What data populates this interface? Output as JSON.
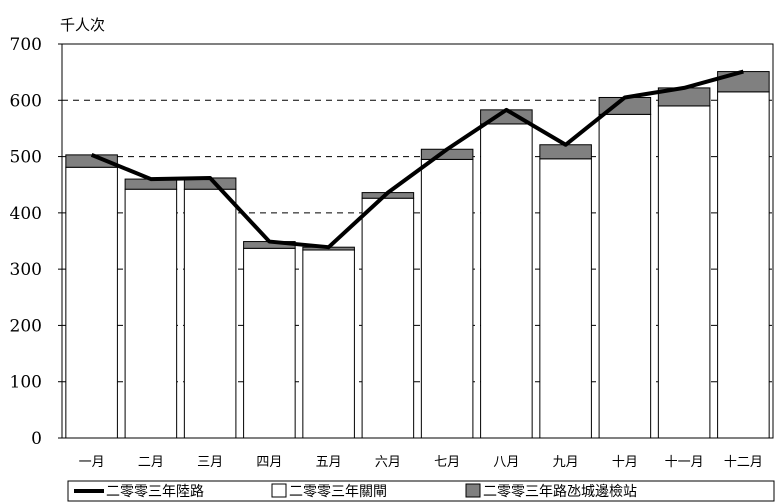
{
  "chart_data": {
    "type": "bar",
    "stacked": true,
    "y_unit": "千人次",
    "categories": [
      "一月",
      "二月",
      "三月",
      "四月",
      "五月",
      "六月",
      "七月",
      "八月",
      "九月",
      "十月",
      "十一月",
      "十二月"
    ],
    "series": [
      {
        "name": "二零零三年關閘",
        "kind": "bar",
        "color": "#ffffff",
        "values": [
          481,
          442,
          442,
          337,
          334,
          426,
          495,
          558,
          496,
          575,
          590,
          615
        ]
      },
      {
        "name": "二零零三年路氹城邊檢站",
        "kind": "bar",
        "color": "#808080",
        "values": [
          22,
          18,
          20,
          12,
          5,
          10,
          18,
          25,
          25,
          30,
          32,
          36
        ]
      },
      {
        "name": "二零零三年陸路",
        "kind": "line",
        "color": "#000000",
        "values": [
          503,
          460,
          462,
          349,
          339,
          436,
          513,
          583,
          521,
          605,
          622,
          651
        ]
      }
    ],
    "ylim": [
      0,
      700
    ],
    "yticks": [
      0,
      100,
      200,
      300,
      400,
      500,
      600,
      700
    ],
    "grid": "dashed-horizontal",
    "legend_position": "bottom"
  }
}
